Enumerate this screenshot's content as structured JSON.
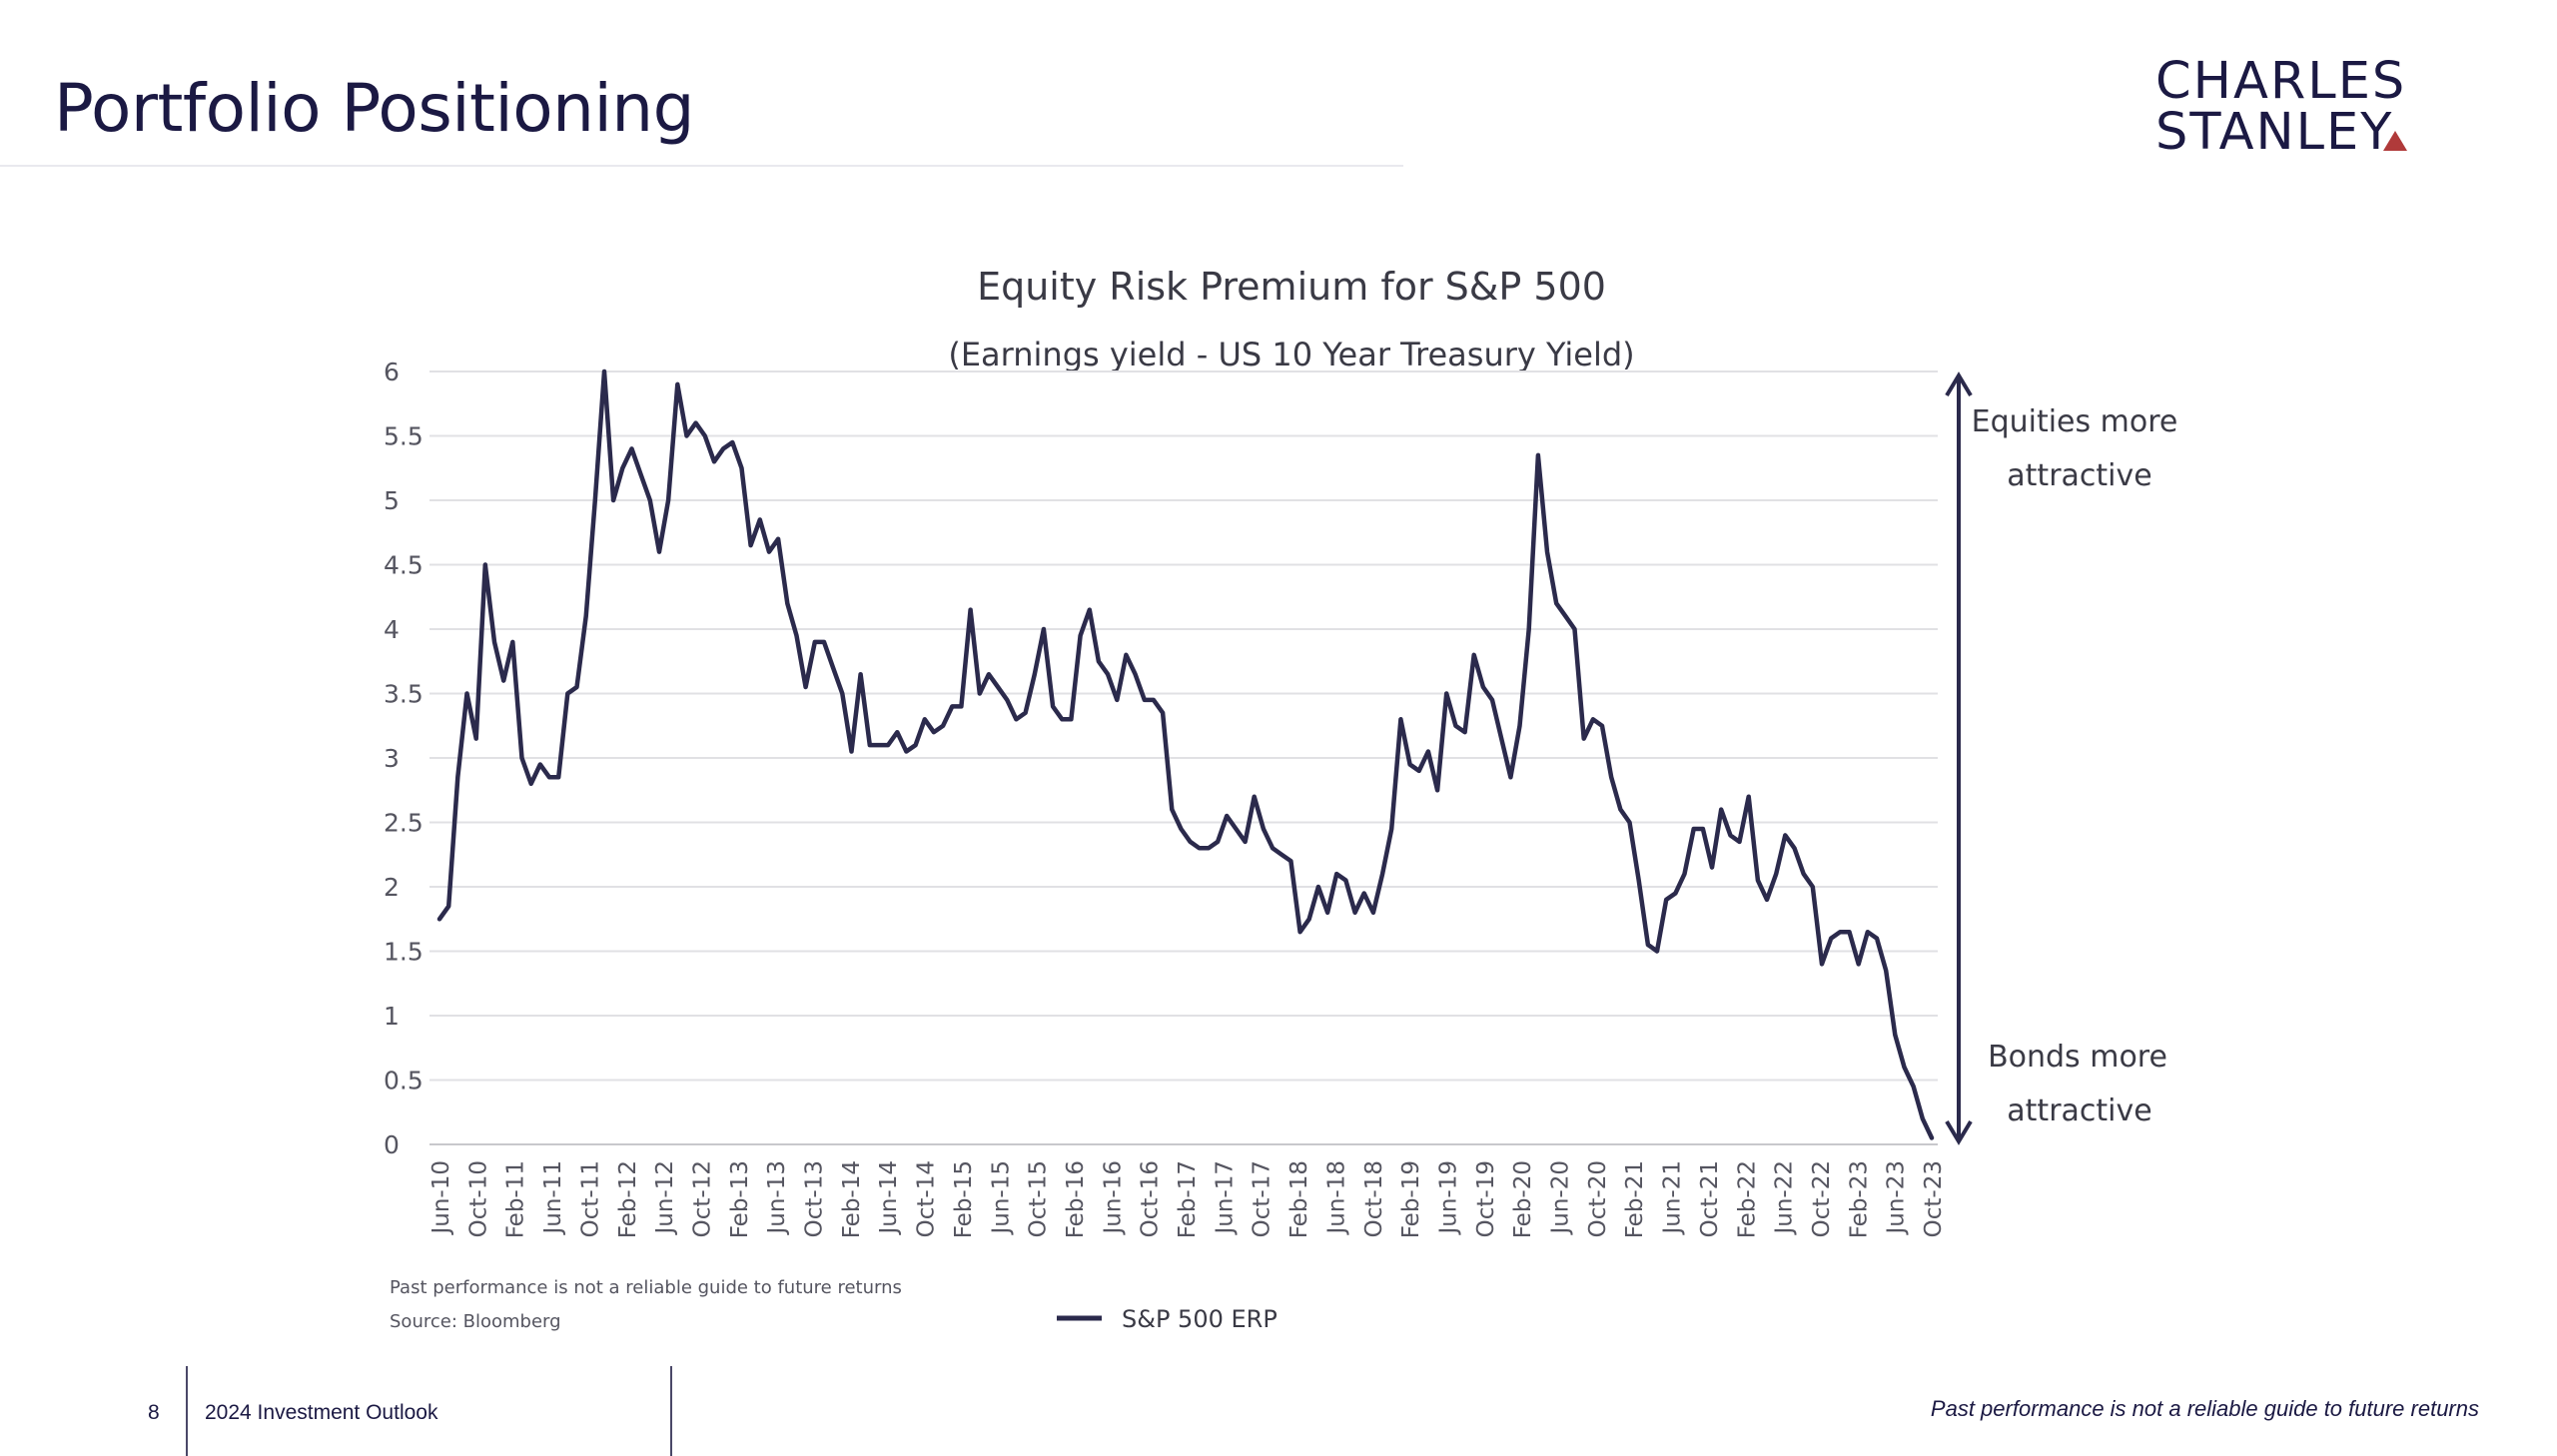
{
  "slide": {
    "title": "Portfolio Positioning",
    "logo_line1": "CHARLES",
    "logo_line2": "STANLEY",
    "brand_accent": "#b03a3a"
  },
  "footer": {
    "page_number": "8",
    "document_title": "2024 Investment Outlook",
    "disclaimer": "Past performance is not a reliable guide to future returns"
  },
  "chart_data": {
    "type": "line",
    "title": "Equity Risk Premium for S&P 500",
    "subtitle": "(Earnings yield - US 10 Year Treasury Yield)",
    "ylim": [
      0,
      6
    ],
    "y_ticks": [
      "0",
      "0.5",
      "1",
      "1.5",
      "2",
      "2.5",
      "3",
      "3.5",
      "4",
      "4.5",
      "5",
      "5.5",
      "6"
    ],
    "x_ticks": [
      "Jun-10",
      "Oct-10",
      "Feb-11",
      "Jun-11",
      "Oct-11",
      "Feb-12",
      "Jun-12",
      "Oct-12",
      "Feb-13",
      "Jun-13",
      "Oct-13",
      "Feb-14",
      "Jun-14",
      "Oct-14",
      "Feb-15",
      "Jun-15",
      "Oct-15",
      "Feb-16",
      "Jun-16",
      "Oct-16",
      "Feb-17",
      "Jun-17",
      "Oct-17",
      "Feb-18",
      "Jun-18",
      "Oct-18",
      "Feb-19",
      "Jun-19",
      "Oct-19",
      "Feb-20",
      "Jun-20",
      "Oct-20",
      "Feb-21",
      "Jun-21",
      "Oct-21",
      "Feb-22",
      "Jun-22",
      "Oct-22",
      "Feb-23",
      "Jun-23",
      "Oct-23"
    ],
    "x_start": "Jun-10",
    "grid": true,
    "legend": "bottom",
    "line_color": "#2b2a4c",
    "series": [
      {
        "name": "S&P 500 ERP",
        "values": [
          1.75,
          1.85,
          2.85,
          3.5,
          3.15,
          4.5,
          3.9,
          3.6,
          3.9,
          3.0,
          2.8,
          2.95,
          2.85,
          2.85,
          3.5,
          3.55,
          4.1,
          5.0,
          6.0,
          5.0,
          5.25,
          5.4,
          5.2,
          5.0,
          4.6,
          5.0,
          5.9,
          5.5,
          5.6,
          5.5,
          5.3,
          5.4,
          5.45,
          5.25,
          4.65,
          4.85,
          4.6,
          4.7,
          4.2,
          3.95,
          3.55,
          3.9,
          3.9,
          3.7,
          3.5,
          3.05,
          3.65,
          3.1,
          3.1,
          3.1,
          3.2,
          3.05,
          3.1,
          3.3,
          3.2,
          3.25,
          3.4,
          3.4,
          4.15,
          3.5,
          3.65,
          3.55,
          3.45,
          3.3,
          3.35,
          3.65,
          4.0,
          3.4,
          3.3,
          3.3,
          3.95,
          4.15,
          3.75,
          3.65,
          3.45,
          3.8,
          3.65,
          3.45,
          3.45,
          3.35,
          2.6,
          2.45,
          2.35,
          2.3,
          2.3,
          2.35,
          2.55,
          2.45,
          2.35,
          2.7,
          2.45,
          2.3,
          2.25,
          2.2,
          1.65,
          1.75,
          2.0,
          1.8,
          2.1,
          2.05,
          1.8,
          1.95,
          1.8,
          2.1,
          2.45,
          3.3,
          2.95,
          2.9,
          3.05,
          2.75,
          3.5,
          3.25,
          3.2,
          3.8,
          3.55,
          3.45,
          3.15,
          2.85,
          3.25,
          4.0,
          5.35,
          4.6,
          4.2,
          4.1,
          4.0,
          3.15,
          3.3,
          3.25,
          2.85,
          2.6,
          2.5,
          2.05,
          1.55,
          1.5,
          1.9,
          1.95,
          2.1,
          2.45,
          2.45,
          2.15,
          2.6,
          2.4,
          2.35,
          2.7,
          2.05,
          1.9,
          2.1,
          2.4,
          2.3,
          2.1,
          2.0,
          1.4,
          1.6,
          1.65,
          1.65,
          1.4,
          1.65,
          1.6,
          1.35,
          0.85,
          0.6,
          0.45,
          0.2,
          0.05
        ]
      }
    ],
    "annotations": {
      "top_line1": "Equities more",
      "top_line2": "attractive",
      "bottom_line1": "Bonds more",
      "bottom_line2": "attractive"
    },
    "notes": {
      "note_line1": "Past performance is not a  reliable guide to future returns",
      "note_line2": "Source: Bloomberg"
    }
  }
}
